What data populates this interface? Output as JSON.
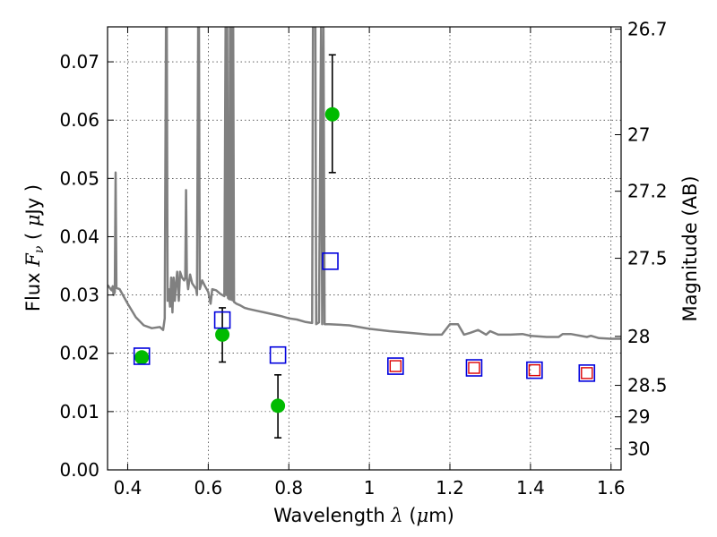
{
  "chart_data": {
    "type": "scatter",
    "xlabel": "Wavelength",
    "xlabel_symbol": "λ",
    "xlabel_unit_open": " (",
    "xlabel_unit_mu": "μ",
    "xlabel_unit_rest": "m)",
    "ylabel": "Flux",
    "ylabel_symbol": "F",
    "ylabel_subscript": "ν",
    "ylabel_unit_open": "  ( ",
    "ylabel_unit_mu": "μ",
    "ylabel_unit_rest": "Jy )",
    "y2label": "Magnitude (AB)",
    "xlim": [
      0.35,
      1.625
    ],
    "ylim": [
      0.0,
      0.076
    ],
    "grid": true,
    "x_ticks": [
      {
        "value": 0.4,
        "label": "0.4"
      },
      {
        "value": 0.6,
        "label": "0.6"
      },
      {
        "value": 0.8,
        "label": "0.8"
      },
      {
        "value": 1.0,
        "label": "1"
      },
      {
        "value": 1.2,
        "label": "1.2"
      },
      {
        "value": 1.4,
        "label": "1.4"
      },
      {
        "value": 1.6,
        "label": "1.6"
      }
    ],
    "y_ticks": [
      {
        "value": 0.0,
        "label": "0.00"
      },
      {
        "value": 0.01,
        "label": "0.01"
      },
      {
        "value": 0.02,
        "label": "0.02"
      },
      {
        "value": 0.03,
        "label": "0.03"
      },
      {
        "value": 0.04,
        "label": "0.04"
      },
      {
        "value": 0.05,
        "label": "0.05"
      },
      {
        "value": 0.06,
        "label": "0.06"
      },
      {
        "value": 0.07,
        "label": "0.07"
      }
    ],
    "y2_ticks": [
      {
        "label": "26.7",
        "flux": 0.0756
      },
      {
        "label": "27",
        "flux": 0.0575
      },
      {
        "label": "27.2",
        "flux": 0.0478
      },
      {
        "label": "27.5",
        "flux": 0.0363
      },
      {
        "label": "28",
        "flux": 0.0229
      },
      {
        "label": "28.5",
        "flux": 0.0145
      },
      {
        "label": "29",
        "flux": 0.0091
      },
      {
        "label": "30",
        "flux": 0.0036
      }
    ],
    "model_spectrum": {
      "color": "#808080",
      "points": [
        [
          0.35,
          0.0317
        ],
        [
          0.36,
          0.0308
        ],
        [
          0.363,
          0.0315
        ],
        [
          0.365,
          0.03
        ],
        [
          0.368,
          0.0305
        ],
        [
          0.37,
          0.051
        ],
        [
          0.372,
          0.0312
        ],
        [
          0.38,
          0.031
        ],
        [
          0.4,
          0.0285
        ],
        [
          0.42,
          0.0262
        ],
        [
          0.44,
          0.0248
        ],
        [
          0.46,
          0.0243
        ],
        [
          0.48,
          0.0245
        ],
        [
          0.488,
          0.024
        ],
        [
          0.492,
          0.026
        ],
        [
          0.495,
          0.076
        ],
        [
          0.497,
          0.076
        ],
        [
          0.499,
          0.029
        ],
        [
          0.502,
          0.031
        ],
        [
          0.505,
          0.028
        ],
        [
          0.508,
          0.033
        ],
        [
          0.511,
          0.027
        ],
        [
          0.514,
          0.033
        ],
        [
          0.517,
          0.029
        ],
        [
          0.52,
          0.032
        ],
        [
          0.523,
          0.034
        ],
        [
          0.527,
          0.029
        ],
        [
          0.53,
          0.034
        ],
        [
          0.535,
          0.033
        ],
        [
          0.54,
          0.0325
        ],
        [
          0.543,
          0.033
        ],
        [
          0.545,
          0.048
        ],
        [
          0.547,
          0.033
        ],
        [
          0.55,
          0.031
        ],
        [
          0.555,
          0.0335
        ],
        [
          0.56,
          0.032
        ],
        [
          0.565,
          0.0315
        ],
        [
          0.57,
          0.031
        ],
        [
          0.572,
          0.03
        ],
        [
          0.575,
          0.076
        ],
        [
          0.577,
          0.076
        ],
        [
          0.579,
          0.031
        ],
        [
          0.585,
          0.0325
        ],
        [
          0.592,
          0.0315
        ],
        [
          0.6,
          0.0305
        ],
        [
          0.606,
          0.0285
        ],
        [
          0.61,
          0.031
        ],
        [
          0.62,
          0.0308
        ],
        [
          0.63,
          0.0302
        ],
        [
          0.64,
          0.0298
        ],
        [
          0.643,
          0.076
        ],
        [
          0.645,
          0.03
        ],
        [
          0.647,
          0.076
        ],
        [
          0.649,
          0.0295
        ],
        [
          0.652,
          0.0293
        ],
        [
          0.654,
          0.076
        ],
        [
          0.656,
          0.0292
        ],
        [
          0.658,
          0.076
        ],
        [
          0.66,
          0.0291
        ],
        [
          0.662,
          0.076
        ],
        [
          0.664,
          0.0288
        ],
        [
          0.67,
          0.0285
        ],
        [
          0.68,
          0.0282
        ],
        [
          0.69,
          0.0278
        ],
        [
          0.7,
          0.0276
        ],
        [
          0.72,
          0.0273
        ],
        [
          0.74,
          0.027
        ],
        [
          0.76,
          0.0267
        ],
        [
          0.78,
          0.0264
        ],
        [
          0.8,
          0.026
        ],
        [
          0.82,
          0.0258
        ],
        [
          0.84,
          0.0254
        ],
        [
          0.858,
          0.0252
        ],
        [
          0.86,
          0.076
        ],
        [
          0.866,
          0.076
        ],
        [
          0.868,
          0.025
        ],
        [
          0.875,
          0.0253
        ],
        [
          0.88,
          0.076
        ],
        [
          0.883,
          0.025
        ],
        [
          0.886,
          0.076
        ],
        [
          0.889,
          0.025
        ],
        [
          0.9,
          0.025
        ],
        [
          0.95,
          0.0248
        ],
        [
          1.0,
          0.0242
        ],
        [
          1.05,
          0.0238
        ],
        [
          1.1,
          0.0235
        ],
        [
          1.15,
          0.0232
        ],
        [
          1.18,
          0.0232
        ],
        [
          1.2,
          0.025
        ],
        [
          1.22,
          0.025
        ],
        [
          1.235,
          0.0232
        ],
        [
          1.25,
          0.0235
        ],
        [
          1.27,
          0.024
        ],
        [
          1.29,
          0.0232
        ],
        [
          1.3,
          0.0238
        ],
        [
          1.32,
          0.0232
        ],
        [
          1.35,
          0.0232
        ],
        [
          1.38,
          0.0233
        ],
        [
          1.4,
          0.023
        ],
        [
          1.44,
          0.0228
        ],
        [
          1.47,
          0.0228
        ],
        [
          1.48,
          0.0233
        ],
        [
          1.5,
          0.0233
        ],
        [
          1.54,
          0.0228
        ],
        [
          1.55,
          0.023
        ],
        [
          1.57,
          0.0226
        ],
        [
          1.6,
          0.0225
        ],
        [
          1.625,
          0.0225
        ]
      ]
    },
    "series": [
      {
        "marker": "filled-circle",
        "color": "#00bb00",
        "errorbar_color": "#000000",
        "points": [
          {
            "x": 0.435,
            "y": 0.0193,
            "err": [
              0.0193,
              0.0193
            ]
          },
          {
            "x": 0.635,
            "y": 0.0232,
            "err": [
              0.0185,
              0.0278
            ]
          },
          {
            "x": 0.773,
            "y": 0.011,
            "err": [
              0.0055,
              0.0163
            ]
          },
          {
            "x": 0.908,
            "y": 0.061,
            "err": [
              0.051,
              0.0712
            ]
          }
        ]
      },
      {
        "marker": "open-square",
        "color": "#0000dd",
        "points": [
          {
            "x": 0.435,
            "y": 0.0195
          },
          {
            "x": 0.635,
            "y": 0.0257
          },
          {
            "x": 0.773,
            "y": 0.0197
          },
          {
            "x": 0.903,
            "y": 0.0358
          },
          {
            "x": 1.065,
            "y": 0.0178
          },
          {
            "x": 1.26,
            "y": 0.0175
          },
          {
            "x": 1.41,
            "y": 0.0171
          },
          {
            "x": 1.54,
            "y": 0.0166
          }
        ]
      },
      {
        "marker": "open-square-small",
        "color": "#dd0000",
        "points": [
          {
            "x": 1.065,
            "y": 0.0178
          },
          {
            "x": 1.26,
            "y": 0.0175
          },
          {
            "x": 1.41,
            "y": 0.0171
          },
          {
            "x": 1.54,
            "y": 0.0166
          }
        ]
      }
    ]
  }
}
